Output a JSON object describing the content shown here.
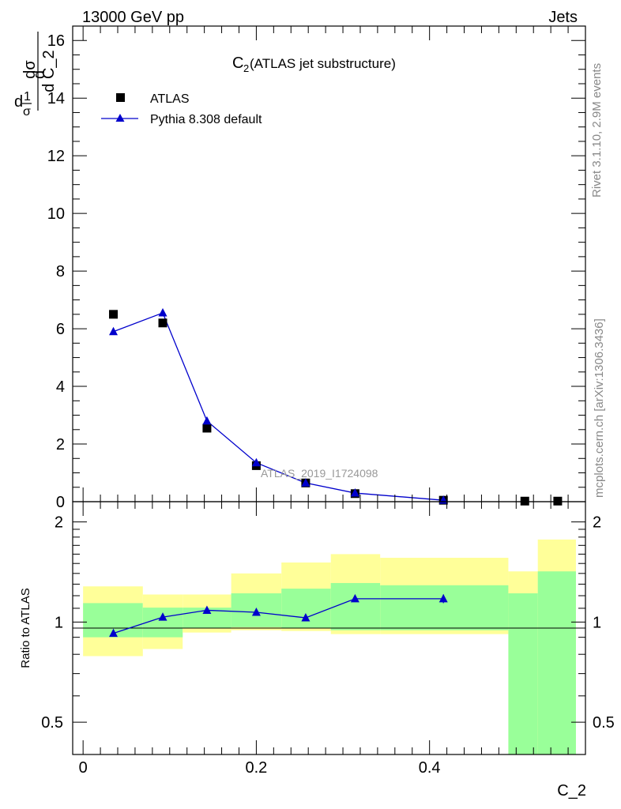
{
  "header": {
    "left": "13000 GeV pp",
    "right": "Jets"
  },
  "side": {
    "rivet": "Rivet 3.1.10,  2.9M events",
    "mcplots": "mcplots.cern.ch [arXiv:1306.3436]"
  },
  "main": {
    "ylabel_num1": "1",
    "ylabel_den1": "σ",
    "ylabel_num2": "dσ",
    "ylabel_den2": "d C_2",
    "ylabel_d": "d",
    "title_main": "C",
    "title_sub": "2",
    "title_rest": " (ATLAS jet substructure)",
    "watermark": "ATLAS_2019_I1724098",
    "legend": [
      {
        "label": "ATLAS",
        "marker": "square",
        "color": "#000000"
      },
      {
        "label": "Pythia 8.308 default",
        "marker": "triangle",
        "color": "#0000cc"
      }
    ]
  },
  "ratio": {
    "ylabel": "Ratio to ATLAS"
  },
  "xaxis": {
    "label": "C_2"
  },
  "chart_data": [
    {
      "type": "scatter",
      "panel": "main",
      "xlim": [
        -0.012,
        0.58
      ],
      "ylim": [
        0,
        16.5
      ],
      "yticks": [
        0,
        2,
        4,
        6,
        8,
        10,
        12,
        14,
        16
      ],
      "xticks": [
        0,
        0.2,
        0.4
      ],
      "series": [
        {
          "name": "ATLAS",
          "x": [
            0.035,
            0.092,
            0.143,
            0.2,
            0.257,
            0.314,
            0.416,
            0.51,
            0.548
          ],
          "y": [
            6.5,
            6.2,
            2.55,
            1.25,
            0.65,
            0.28,
            0.05,
            0.02,
            0.02
          ]
        },
        {
          "name": "Pythia 8.308 default",
          "x": [
            0.035,
            0.092,
            0.143,
            0.2,
            0.257,
            0.314,
            0.416
          ],
          "y": [
            5.9,
            6.55,
            2.8,
            1.35,
            0.65,
            0.3,
            0.05
          ]
        }
      ]
    },
    {
      "type": "line",
      "panel": "ratio",
      "xlim": [
        -0.012,
        0.58
      ],
      "ylim": [
        0.4,
        2.3
      ],
      "yticks": [
        0.5,
        1,
        2
      ],
      "xticks": [
        0,
        0.2,
        0.4
      ],
      "series": [
        {
          "name": "Pythia 8.308 default",
          "x": [
            0.035,
            0.092,
            0.143,
            0.2,
            0.257,
            0.314,
            0.416
          ],
          "y": [
            0.925,
            1.035,
            1.085,
            1.07,
            1.03,
            1.175,
            1.175
          ],
          "yerr": [
            0,
            0,
            0,
            0,
            0,
            0,
            0.035
          ]
        }
      ],
      "bands": {
        "edges": [
          0.0,
          0.069,
          0.115,
          0.171,
          0.229,
          0.286,
          0.343,
          0.491,
          0.525,
          0.569
        ],
        "green_lo": [
          0.9,
          0.9,
          0.96,
          0.965,
          0.96,
          0.945,
          0.945,
          0.4,
          0.4
        ],
        "green_hi": [
          1.14,
          1.105,
          1.105,
          1.22,
          1.26,
          1.31,
          1.29,
          1.22,
          1.42
        ],
        "yellow_lo": [
          0.79,
          0.83,
          0.93,
          0.945,
          0.94,
          0.92,
          0.92,
          0.4,
          0.4
        ],
        "yellow_hi": [
          1.28,
          1.21,
          1.21,
          1.4,
          1.51,
          1.6,
          1.56,
          1.42,
          1.77
        ]
      }
    }
  ]
}
